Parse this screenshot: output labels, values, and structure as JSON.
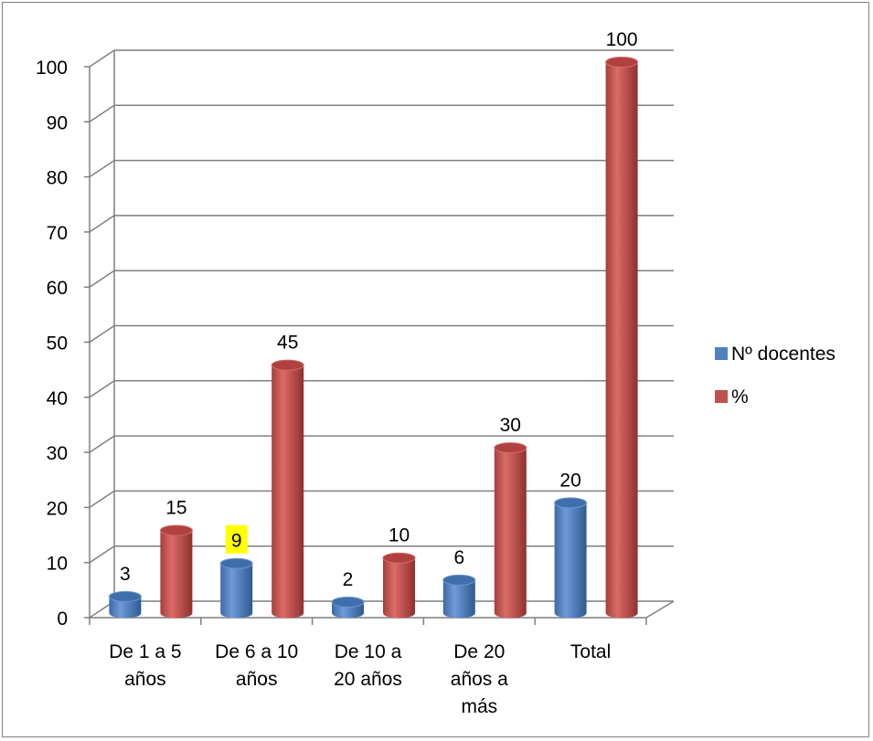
{
  "chart_data": {
    "type": "bar",
    "style": "3d-cylinder",
    "categories": [
      [
        "De 1 a 5",
        "años"
      ],
      [
        "De 6 a 10",
        "años"
      ],
      [
        "De 10 a",
        "20 años"
      ],
      [
        "De 20",
        "años a",
        "más"
      ],
      [
        "Total"
      ]
    ],
    "series": [
      {
        "name": "Nº docentes",
        "color": "#4f81bd",
        "values": [
          3,
          9,
          2,
          6,
          20
        ]
      },
      {
        "name": "%",
        "color": "#c0504d",
        "values": [
          15,
          45,
          10,
          30,
          100
        ]
      }
    ],
    "data_labels": {
      "Nº docentes": [
        "3",
        "9",
        "2",
        "6",
        "20"
      ],
      "%": [
        "15",
        "45",
        "10",
        "30",
        "100"
      ]
    },
    "highlighted_label": {
      "series": 0,
      "index": 1,
      "background": "#ffff00"
    },
    "yticks": [
      "0",
      "10",
      "20",
      "30",
      "40",
      "50",
      "60",
      "70",
      "80",
      "90",
      "100"
    ],
    "ylim": [
      0,
      100
    ],
    "grid": true,
    "legend_position": "right"
  }
}
